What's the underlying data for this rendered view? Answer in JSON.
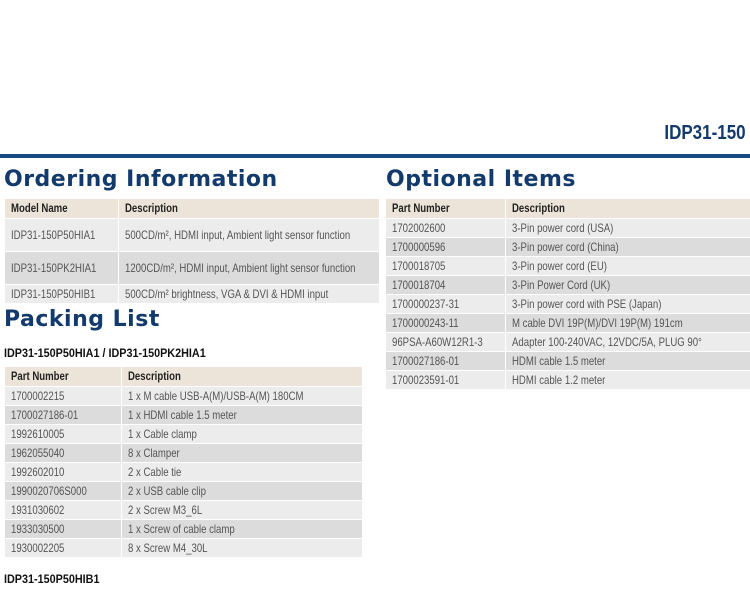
{
  "header": {
    "title": "IDP31-150"
  },
  "ordering": {
    "title": "Ordering Information",
    "columns": [
      "Model Name",
      "Description"
    ],
    "rows": [
      [
        "IDP31-150P50HIA1",
        "500CD/m², HDMI input, Ambient light sensor function"
      ],
      [
        "IDP31-150PK2HIA1",
        "1200CD/m², HDMI input, Ambient light sensor function"
      ],
      [
        "IDP31-150P50HIB1",
        "500CD/m² brightness, VGA & DVI & HDMI input"
      ]
    ]
  },
  "packing": {
    "title": "Packing List",
    "subtitle": "IDP31-150P50HIA1 / IDP31-150PK2HIA1",
    "columns": [
      "Part Number",
      "Description"
    ],
    "rows": [
      [
        "1700002215",
        "1 x M cable USB-A(M)/USB-A(M) 180CM"
      ],
      [
        "1700027186-01",
        "1 x HDMI cable 1.5 meter"
      ],
      [
        "1992610005",
        "1 x Cable clamp"
      ],
      [
        "1962055040",
        "8 x Clamper"
      ],
      [
        "1992602010",
        "2 x Cable tie"
      ],
      [
        "1990020706S000",
        "2 x USB cable clip"
      ],
      [
        "1931030602",
        "2 x Screw M3_6L"
      ],
      [
        "1933030500",
        "1 x Screw of cable clamp"
      ],
      [
        "1930002205",
        "8 x Screw M4_30L"
      ]
    ],
    "subtitle2": "IDP31-150P50HIB1"
  },
  "optional": {
    "title": "Optional Items",
    "columns": [
      "Part Number",
      "Description"
    ],
    "rows": [
      [
        "1702002600",
        "3-Pin power cord (USA)"
      ],
      [
        "1700000596",
        "3-Pin power cord (China)"
      ],
      [
        "1700018705",
        "3-Pin power cord (EU)"
      ],
      [
        "1700018704",
        "3-Pin Power Cord (UK)"
      ],
      [
        "1700000237-31",
        "3-Pin power cord with PSE (Japan)"
      ],
      [
        "1700000243-11",
        "M cable DVI 19P(M)/DVI 19P(M) 191cm"
      ],
      [
        "96PSA-A60W12R1-3",
        "Adapter 100-240VAC, 12VDC/5A, PLUG 90°"
      ],
      [
        "1700027186-01",
        "HDMI cable 1.5 meter"
      ],
      [
        "1700023591-01",
        "HDMI cable 1.2 meter"
      ]
    ]
  }
}
